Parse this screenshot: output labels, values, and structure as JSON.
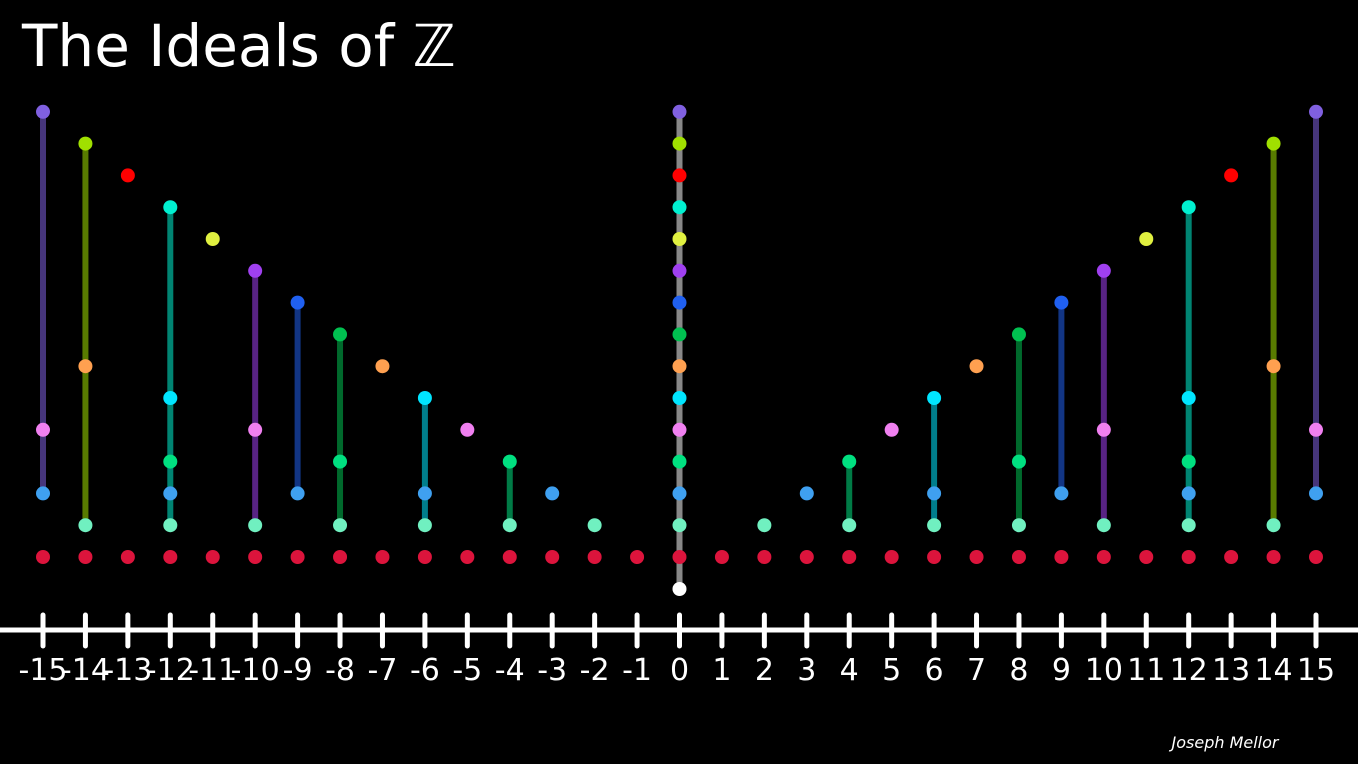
{
  "title": "The Ideals of ℤ",
  "author": "Joseph Mellor",
  "ticks": [
    -15,
    -14,
    -13,
    -12,
    -11,
    -10,
    -9,
    -8,
    -7,
    -6,
    -5,
    -4,
    -3,
    -2,
    -1,
    0,
    1,
    2,
    3,
    4,
    5,
    6,
    7,
    8,
    9,
    10,
    11,
    12,
    13,
    14,
    15
  ],
  "ideals": [
    {
      "generator": 0,
      "color": "#ffffff"
    },
    {
      "generator": 1,
      "color": "#dc143c"
    },
    {
      "generator": 2,
      "color": "#70f0c0"
    },
    {
      "generator": 3,
      "color": "#3fa0f0"
    },
    {
      "generator": 4,
      "color": "#00e080"
    },
    {
      "generator": 5,
      "color": "#f080f0"
    },
    {
      "generator": 6,
      "color": "#00e5ff"
    },
    {
      "generator": 7,
      "color": "#ffa050"
    },
    {
      "generator": 8,
      "color": "#00c050"
    },
    {
      "generator": 9,
      "color": "#2060f0"
    },
    {
      "generator": 10,
      "color": "#a040f0"
    },
    {
      "generator": 11,
      "color": "#e0f040"
    },
    {
      "generator": 12,
      "color": "#00f0d0"
    },
    {
      "generator": 13,
      "color": "#ff0000"
    },
    {
      "generator": 14,
      "color": "#a0e000"
    },
    {
      "generator": 15,
      "color": "#8060e0"
    }
  ]
}
